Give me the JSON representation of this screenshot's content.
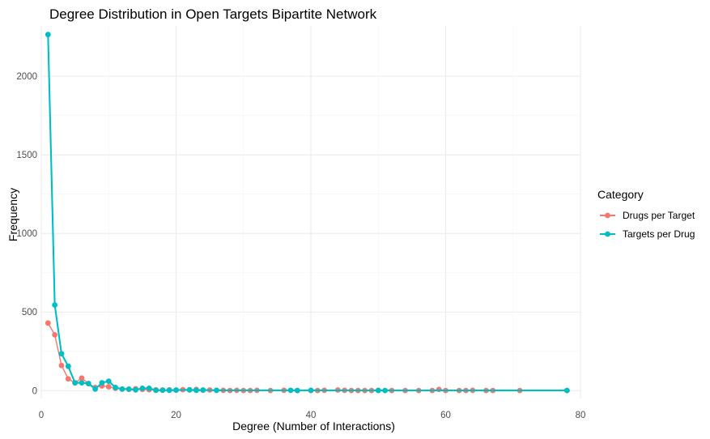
{
  "chart_data": {
    "type": "line",
    "title": "Degree Distribution in Open Targets Bipartite Network",
    "xlabel": "Degree (Number of Interactions)",
    "ylabel": "Frequency",
    "xlim": [
      0,
      80
    ],
    "ylim": [
      -50,
      2320
    ],
    "xticks": [
      0,
      20,
      40,
      60,
      80
    ],
    "yticks": [
      0,
      500,
      1000,
      1500,
      2000
    ],
    "grid": true,
    "legend_position": "right",
    "legend_title": "Category",
    "series": [
      {
        "name": "Drugs per Target",
        "color": "#F8766D",
        "x": [
          1,
          2,
          3,
          4,
          5,
          6,
          7,
          8,
          9,
          10,
          11,
          12,
          13,
          14,
          15,
          16,
          17,
          18,
          19,
          20,
          21,
          22,
          23,
          24,
          25,
          26,
          27,
          28,
          29,
          30,
          31,
          32,
          34,
          36,
          38,
          40,
          41,
          42,
          44,
          45,
          46,
          47,
          48,
          49,
          50,
          52,
          54,
          56,
          58,
          59,
          60,
          62,
          63,
          64,
          66,
          67,
          71,
          78
        ],
        "y": [
          430,
          355,
          160,
          75,
          50,
          80,
          45,
          20,
          30,
          25,
          15,
          10,
          8,
          12,
          8,
          6,
          5,
          4,
          5,
          3,
          6,
          5,
          8,
          3,
          4,
          2,
          2,
          1,
          2,
          1,
          1,
          2,
          1,
          2,
          1,
          1,
          1,
          2,
          4,
          2,
          1,
          1,
          1,
          1,
          2,
          1,
          1,
          1,
          1,
          8,
          1,
          1,
          1,
          2,
          1,
          1,
          1,
          1
        ]
      },
      {
        "name": "Targets per Drug",
        "color": "#00BFC4",
        "x": [
          1,
          2,
          3,
          4,
          5,
          6,
          7,
          8,
          9,
          10,
          11,
          12,
          13,
          14,
          15,
          16,
          17,
          18,
          19,
          20,
          22,
          23,
          24,
          26,
          37,
          38,
          40,
          50,
          51,
          78
        ],
        "y": [
          2265,
          545,
          235,
          155,
          50,
          50,
          45,
          10,
          50,
          60,
          20,
          10,
          10,
          5,
          15,
          15,
          2,
          3,
          2,
          4,
          5,
          2,
          4,
          2,
          2,
          1,
          2,
          1,
          1,
          1
        ]
      }
    ]
  }
}
